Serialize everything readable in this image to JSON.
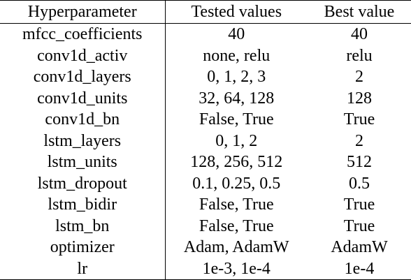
{
  "table": {
    "headers": [
      "Hyperparameter",
      "Tested values",
      "Best value"
    ],
    "rows": [
      [
        "mfcc_coefficients",
        "40",
        "40"
      ],
      [
        "conv1d_activ",
        "none, relu",
        "relu"
      ],
      [
        "conv1d_layers",
        "0, 1, 2, 3",
        "2"
      ],
      [
        "conv1d_units",
        "32, 64, 128",
        "128"
      ],
      [
        "conv1d_bn",
        "False, True",
        "True"
      ],
      [
        "lstm_layers",
        "0, 1, 2",
        "2"
      ],
      [
        "lstm_units",
        "128, 256, 512",
        "512"
      ],
      [
        "lstm_dropout",
        "0.1, 0.25, 0.5",
        "0.5"
      ],
      [
        "lstm_bidir",
        "False, True",
        "True"
      ],
      [
        "lstm_bn",
        "False, True",
        "True"
      ],
      [
        "optimizer",
        "Adam, AdamW",
        "AdamW"
      ],
      [
        "lr",
        "1e-3, 1e-4",
        "1e-4"
      ]
    ]
  }
}
